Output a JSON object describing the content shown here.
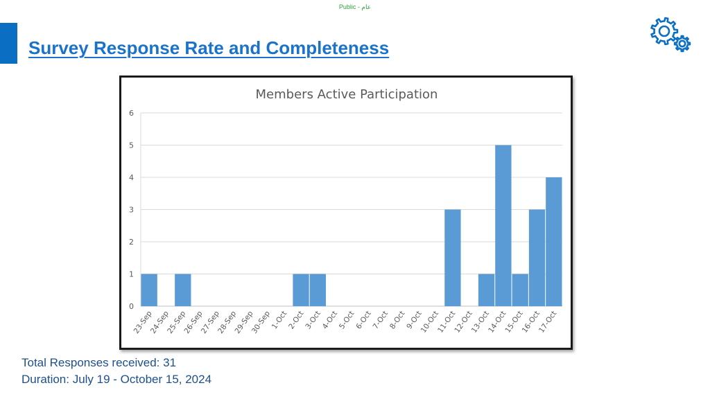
{
  "header": {
    "classification_label": "Public - عام",
    "title": "Survey Response Rate and Completeness"
  },
  "icons": {
    "settings": "gears-icon",
    "accent_color": "#0a6fc2"
  },
  "footer": {
    "total_responses": "Total Responses received: 31",
    "duration": "Duration: July 19 - October 15, 2024"
  },
  "chart_data": {
    "type": "bar",
    "title": "Members Active Participation",
    "xlabel": "",
    "ylabel": "",
    "categories": [
      "23-Sep",
      "24-Sep",
      "25-Sep",
      "26-Sep",
      "27-Sep",
      "28-Sep",
      "29-Sep",
      "30-Sep",
      "1-Oct",
      "2-Oct",
      "3-Oct",
      "4-Oct",
      "5-Oct",
      "6-Oct",
      "7-Oct",
      "8-Oct",
      "9-Oct",
      "10-Oct",
      "11-Oct",
      "12-Oct",
      "13-Oct",
      "14-Oct",
      "15-Oct",
      "16-Oct",
      "17-Oct"
    ],
    "values": [
      1,
      0,
      1,
      0,
      0,
      0,
      0,
      0,
      0,
      1,
      1,
      0,
      0,
      0,
      0,
      0,
      0,
      0,
      3,
      0,
      1,
      5,
      1,
      3,
      4
    ],
    "ylim": [
      0,
      6
    ],
    "yticks": [
      0,
      1,
      2,
      3,
      4,
      5,
      6
    ],
    "grid": true,
    "legend": "none",
    "bar_color": "#5b9bd5"
  }
}
